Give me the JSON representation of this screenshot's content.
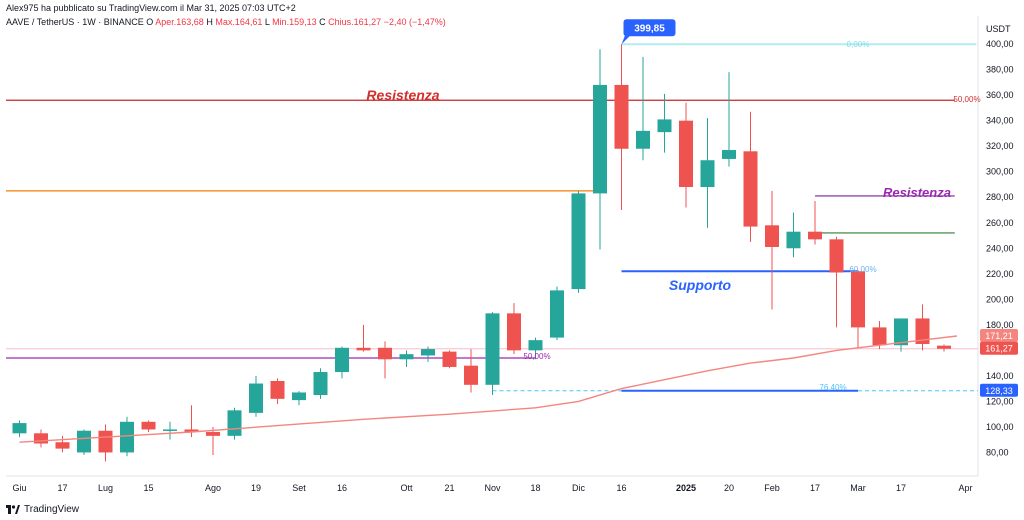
{
  "publisher_line": "Alex975 ha pubblicato su TradingView.com il Mar 31, 2025 07:03 UTC+2",
  "symbol_line": {
    "symbol": "AAVE / TetherUS · 1W · BINANCE",
    "open_label": "O",
    "open_text": "Aper.163,68",
    "high_label": "H",
    "high_text": "Max.164,61",
    "low_label": "L",
    "low_text": "Min.159,13",
    "close_label": "C",
    "close_text": "Chius.161,27",
    "change_text": "−2,40 (−1,47%)"
  },
  "branding": "TradingView",
  "colors": {
    "up": "#26a69a",
    "down": "#ef5350",
    "ma": "#f4867f",
    "resistance_red": "#c62828",
    "orange": "#f57c00",
    "purple": "#9c27b0",
    "support_blue": "#2962ff",
    "green_line": "#2e7d32",
    "cyan": "#4fc3f7"
  },
  "chart_data": {
    "type": "candlestick",
    "currency_label": "USDT",
    "y_axis_ticks": [
      "400,00",
      "380,00",
      "360,00",
      "340,00",
      "320,00",
      "300,00",
      "280,00",
      "260,00",
      "240,00",
      "220,00",
      "200,00",
      "180,00",
      "160,00",
      "140,00",
      "120,00",
      "100,00",
      "80,00"
    ],
    "ylim": [
      62,
      412
    ],
    "x_axis_ticks": [
      {
        "label": "Giu",
        "bar": 0
      },
      {
        "label": "17",
        "bar": 2
      },
      {
        "label": "Lug",
        "bar": 4
      },
      {
        "label": "15",
        "bar": 6
      },
      {
        "label": "Ago",
        "bar": 9
      },
      {
        "label": "19",
        "bar": 11
      },
      {
        "label": "Set",
        "bar": 13
      },
      {
        "label": "16",
        "bar": 15
      },
      {
        "label": "Ott",
        "bar": 18
      },
      {
        "label": "21",
        "bar": 20
      },
      {
        "label": "Nov",
        "bar": 22
      },
      {
        "label": "18",
        "bar": 24
      },
      {
        "label": "Dic",
        "bar": 26
      },
      {
        "label": "16",
        "bar": 28
      },
      {
        "label": "2025",
        "bar": 31
      },
      {
        "label": "20",
        "bar": 33
      },
      {
        "label": "Feb",
        "bar": 35
      },
      {
        "label": "17",
        "bar": 37
      },
      {
        "label": "Mar",
        "bar": 39
      },
      {
        "label": "17",
        "bar": 41
      },
      {
        "label": "Apr",
        "bar": 44
      }
    ],
    "candles": [
      {
        "o": 95,
        "h": 105,
        "l": 92,
        "c": 103
      },
      {
        "o": 95,
        "h": 98,
        "l": 84,
        "c": 87
      },
      {
        "o": 88,
        "h": 93,
        "l": 80,
        "c": 83
      },
      {
        "o": 80,
        "h": 98,
        "l": 78,
        "c": 97
      },
      {
        "o": 97,
        "h": 102,
        "l": 73,
        "c": 80
      },
      {
        "o": 80,
        "h": 108,
        "l": 77,
        "c": 104
      },
      {
        "o": 104,
        "h": 105,
        "l": 96,
        "c": 98
      },
      {
        "o": 98,
        "h": 104,
        "l": 90,
        "c": 98
      },
      {
        "o": 98,
        "h": 117,
        "l": 92,
        "c": 96
      },
      {
        "o": 96,
        "h": 100,
        "l": 78,
        "c": 93
      },
      {
        "o": 93,
        "h": 115,
        "l": 90,
        "c": 113
      },
      {
        "o": 111,
        "h": 140,
        "l": 108,
        "c": 134
      },
      {
        "o": 136,
        "h": 138,
        "l": 118,
        "c": 122
      },
      {
        "o": 121,
        "h": 128,
        "l": 117,
        "c": 127
      },
      {
        "o": 125,
        "h": 146,
        "l": 122,
        "c": 143
      },
      {
        "o": 143,
        "h": 163,
        "l": 138,
        "c": 162
      },
      {
        "o": 162,
        "h": 180,
        "l": 159,
        "c": 160
      },
      {
        "o": 162,
        "h": 167,
        "l": 138,
        "c": 153
      },
      {
        "o": 153,
        "h": 160,
        "l": 147,
        "c": 157
      },
      {
        "o": 156,
        "h": 163,
        "l": 151,
        "c": 161
      },
      {
        "o": 159,
        "h": 160,
        "l": 146,
        "c": 147
      },
      {
        "o": 148,
        "h": 161,
        "l": 127,
        "c": 133
      },
      {
        "o": 133,
        "h": 190,
        "l": 125,
        "c": 189
      },
      {
        "o": 189,
        "h": 197,
        "l": 157,
        "c": 160
      },
      {
        "o": 160,
        "h": 170,
        "l": 153,
        "c": 168
      },
      {
        "o": 170,
        "h": 210,
        "l": 168,
        "c": 207
      },
      {
        "o": 208,
        "h": 285,
        "l": 205,
        "c": 283
      },
      {
        "o": 283,
        "h": 396,
        "l": 239,
        "c": 368
      },
      {
        "o": 368,
        "h": 399.85,
        "l": 270,
        "c": 318
      },
      {
        "o": 318,
        "h": 390,
        "l": 309,
        "c": 332
      },
      {
        "o": 331,
        "h": 361,
        "l": 315,
        "c": 341
      },
      {
        "o": 340,
        "h": 354,
        "l": 272,
        "c": 288
      },
      {
        "o": 288,
        "h": 342,
        "l": 256,
        "c": 309
      },
      {
        "o": 310,
        "h": 378,
        "l": 304,
        "c": 317
      },
      {
        "o": 316,
        "h": 347,
        "l": 245,
        "c": 257
      },
      {
        "o": 258,
        "h": 285,
        "l": 192,
        "c": 241
      },
      {
        "o": 240,
        "h": 268,
        "l": 233,
        "c": 253
      },
      {
        "o": 253,
        "h": 277,
        "l": 243,
        "c": 247
      },
      {
        "o": 247,
        "h": 249,
        "l": 178,
        "c": 221
      },
      {
        "o": 222,
        "h": 223,
        "l": 162,
        "c": 178
      },
      {
        "o": 178,
        "h": 183,
        "l": 161,
        "c": 164
      },
      {
        "o": 164,
        "h": 185,
        "l": 159,
        "c": 185
      },
      {
        "o": 185,
        "h": 196,
        "l": 160,
        "c": 165
      },
      {
        "o": 163.68,
        "h": 164.61,
        "l": 159.13,
        "c": 161.27
      }
    ],
    "moving_average": [
      {
        "bar": 0,
        "v": 88
      },
      {
        "bar": 4,
        "v": 92
      },
      {
        "bar": 8,
        "v": 96
      },
      {
        "bar": 12,
        "v": 101
      },
      {
        "bar": 16,
        "v": 106
      },
      {
        "bar": 20,
        "v": 110
      },
      {
        "bar": 24,
        "v": 115
      },
      {
        "bar": 26,
        "v": 120
      },
      {
        "bar": 28,
        "v": 130
      },
      {
        "bar": 30,
        "v": 137
      },
      {
        "bar": 32,
        "v": 144
      },
      {
        "bar": 34,
        "v": 150
      },
      {
        "bar": 36,
        "v": 154
      },
      {
        "bar": 38,
        "v": 160
      },
      {
        "bar": 40,
        "v": 164
      },
      {
        "bar": 42,
        "v": 168
      },
      {
        "bar": 43.6,
        "v": 171.21
      }
    ],
    "horizontal_lines": [
      {
        "name": "resistenza-red",
        "value": 356,
        "from_bar": -1,
        "to_bar": 43.5,
        "color": "#c62828",
        "tag": "50,00%"
      },
      {
        "name": "orange",
        "value": 285,
        "from_bar": -1,
        "to_bar": 27,
        "color": "#f57c00"
      },
      {
        "name": "purple-left",
        "value": 154,
        "from_bar": -1,
        "to_bar": 24,
        "color": "#9c27b0"
      },
      {
        "name": "purple-right",
        "value": 281,
        "from_bar": 37,
        "to_bar": 43.5,
        "color": "#7b1fa2"
      },
      {
        "name": "green",
        "value": 252,
        "from_bar": 37,
        "to_bar": 43.5,
        "color": "#2e7d32"
      },
      {
        "name": "supporto",
        "value": 222,
        "from_bar": 28,
        "to_bar": 39,
        "color": "#2962ff"
      },
      {
        "name": "fib-top",
        "value": 399.85,
        "from_bar": 28,
        "to_bar": 44.5,
        "color": "#b2ebf2"
      },
      {
        "name": "fib-bottom",
        "value": 128.33,
        "from_bar": 28,
        "to_bar": 39,
        "color": "#2962ff"
      }
    ],
    "labels": {
      "resistenza_1": "Resistenza",
      "resistenza_2": "Resistenza",
      "supporto": "Supporto",
      "fib_0": "0,00%",
      "fib_50a": "50,00%",
      "fib_50b": "50,00%",
      "fib_60": "60,00%",
      "fib_764": "76,40%",
      "high_callout": "399,85"
    },
    "price_tags": [
      {
        "text": "171,21",
        "value": 171.21,
        "color": "#f4867f"
      },
      {
        "text": "161,27",
        "value": 161.27,
        "color": "#ef5350"
      },
      {
        "text": "128,33",
        "value": 128.33,
        "color": "#2962ff"
      }
    ]
  }
}
